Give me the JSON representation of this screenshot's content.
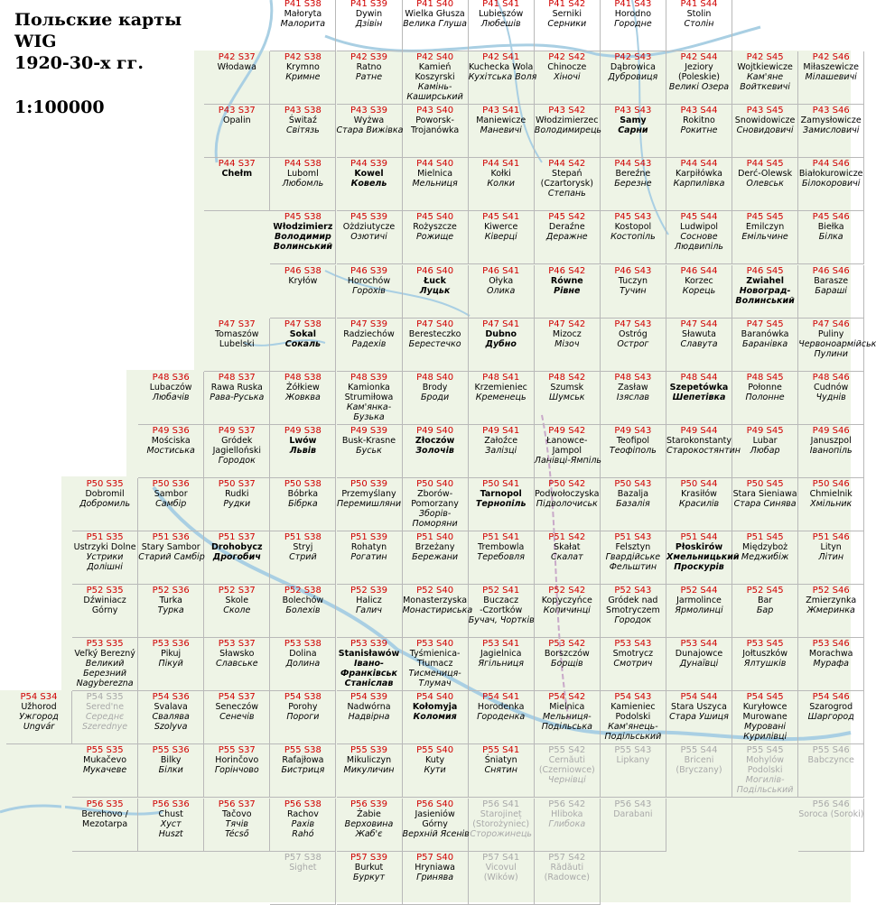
{
  "title_lines": [
    "Польские карты",
    "WIG",
    "1920-30-х гг."
  ],
  "scale": "1:100000",
  "colors": {
    "code": "#d00000",
    "water": "#b4d8ea",
    "land": "#e9f2e0",
    "faded": "#a9a9a9",
    "grid": "#b9b9b9"
  },
  "rows": {
    "41": [
      "P41 S38|Małoryta|Малорита|",
      "P41 S39|Dywin|Дзівін|",
      "P41 S40|Wielka Głusza|Велика Глуша|",
      "P41 S41|Lubieszów|Любешів|",
      "P41 S42|Serniki|Серники|",
      "P41 S43|Horodno|Городне|",
      "P41 S44|Stolin|Столін|"
    ],
    "42": [
      "P42 S37|Włodawa||",
      "P42 S38|Krymno|Кримне|",
      "P42 S39|Ratno|Ратне|",
      "P42 S40|Kamień\nKoszyrski|Камінь-\nКаширський|",
      "P42 S41|Kuchecka Wola|Кухітська Воля|",
      "P42 S42|Chinocze|Хіночі|",
      "P42 S43|Dąbrowica|Дубровиця|",
      "P42 S44|Jeziory\n(Poleskie)|Великі Озера|",
      "P42 S45|Wojtkiewicze|Кам'яне\nВойткевичі|",
      "P42 S46|Miłaszewicze|Мілашевичі|"
    ],
    "43": [
      "P43 S37|Opalin||",
      "P43 S38|Świtaź|Світязь|",
      "P43 S39|Wyżwa|Стара Вижівка|",
      "P43 S40|Poworsk-\nTrojanówka||",
      "P43 S41|Maniewicze|Маневичі|",
      "P43 S42|Włodzimierzec|Володимирець|",
      "P43 S43|Samy|Сарни|b",
      "P43 S44|Rokitno|Рокитне|",
      "P43 S45|Snowidowicze|Сновидовичі|",
      "P43 S46|Zamysłowicze|Замисловичі|"
    ],
    "44": [
      "P44 S37|Chełm||b",
      "P44 S38|Luboml|Любомль|",
      "P44 S39|Kowel|Ковель|b",
      "P44 S40|Mielnica|Мельниця|",
      "P44 S41|Kołki|Колки|",
      "P44 S42|Stepań\n(Czartorysk)|Степань|",
      "P44 S43|Bereźne|Березне|",
      "P44 S44|Karpiłówka|Карпилівка|",
      "P44 S45|Derć-Olewsk|Олевськ|",
      "P44 S46|Białokurowicze|Білокоровичі|"
    ],
    "45": [
      "P45 S38|Włodzimierz|Володимир\nВолинський|b",
      "P45 S39|Ożdziutycze|Озютичі|",
      "P45 S40|Rożyszcze|Рожище|",
      "P45 S41|Kiwerce|Ківерці|",
      "P45 S42|Deraźne|Деражне|",
      "P45 S43|Kostopol|Костопіль|",
      "P45 S44|Ludwipol|Соснове\nЛюдвипіль|",
      "P45 S45|Emilczyn|Емільчине|",
      "P45 S46|Biełka|Білка|"
    ],
    "46": [
      "P46 S38|Kryłów||",
      "P46 S39|Horochów|Горохів|",
      "P46 S40|Łuck|Луцьк|b",
      "P46 S41|Ołyka|Олика|",
      "P46 S42|Równe|Рівне|b",
      "P46 S43|Tuczyn|Тучин|",
      "P46 S44|Korzec|Корець|",
      "P46 S45|Zwiahel|Новоград-\nВолинський|b",
      "P46 S46|Barasze|Бараші|"
    ],
    "47": [
      "P47 S37|Tomaszów\nLubelski||",
      "P47 S38|Sokal|Сокаль|b",
      "P47 S39|Radziechów|Радехів|",
      "P47 S40|Beresteczko|Берестечко|",
      "P47 S41|Dubno|Дубно|b",
      "P47 S42|Mizocz|Мізоч|",
      "P47 S43|Ostróg|Острог|",
      "P47 S44|Sławuta|Славута|",
      "P47 S45|Baranówka|Баранівка|",
      "P47 S46|Puliny|Червоноармійськ\nПулини|"
    ],
    "48": [
      "P48 S36|Lubaczów|Любачів|",
      "P48 S37|Rawa Ruska|Рава-Руська|",
      "P48 S38|Żółkiew|Жовква|",
      "P48 S39|Kamionka\nStrumiłowa|Кам'янка-\nБузька|",
      "P48 S40|Brody|Броди|",
      "P48 S41|Krzemieniec|Кременець|",
      "P48 S42|Szumsk|Шумськ|",
      "P48 S43|Zasław|Ізяслав|",
      "P48 S44|Szepetówka|Шепетівка|b",
      "P48 S45|Połonne|Полонне|",
      "P48 S46|Cudnów|Чуднів|"
    ],
    "49": [
      "P49 S36|Mościska|Мостиська|",
      "P49 S37|Gródek\nJagielloński|Городок|",
      "P49 S38|Lwów|Львів|b",
      "P49 S39|Busk-Krasne|Буськ|",
      "P49 S40|Złoczów|Золочів|b",
      "P49 S41|Załoźce|Залізці|",
      "P49 S42|Łanowce-\nJampol|Ланівці-Ямпіль|",
      "P49 S43|Teofipol|Теофіполь|",
      "P49 S44|Starokonstanty|Старокостянтин|",
      "P49 S45|Lubar|Любар|",
      "P49 S46|Januszpol|Іванопіль|"
    ],
    "50": [
      "P50 S35|Dobromil|Добромиль|",
      "P50 S36|Sambor|Самбір|",
      "P50 S37|Rudki|Рудки|",
      "P50 S38|Bóbrka|Бібрка|",
      "P50 S39|Przemyślany|Перемишляни|",
      "P50 S40|Zborów-\nPomorzany|Зборів-\nПоморяни|",
      "P50 S41|Tarnopol|Тернопіль|b",
      "P50 S42|Podwołoczyska|Підволочиськ|",
      "P50 S43|Bazalja|Базалія|",
      "P50 S44|Krasiłów|Красилів|",
      "P50 S45|Stara Sieniawa|Стара Синява|",
      "P50 S46|Chmielnik|Хмільник|"
    ],
    "51": [
      "P51 S35|Ustrzyki Dolne|Устрики\nДолішні|",
      "P51 S36|Stary Sambor|Старий Самбір|",
      "P51 S37|Drohobycz|Дрогобич|b",
      "P51 S38|Stryj|Стрий|",
      "P51 S39|Rohatyn|Рогатин|",
      "P51 S40|Brzeżany|Бережани|",
      "P51 S41|Trembowla|Теребовля|",
      "P51 S42|Skałat|Скалат|",
      "P51 S43|Felsztyn|Гвардійське\nФельштин|",
      "P51 S44|Płoskirów|Хмельницький\nПроскурів|b",
      "P51 S45|Międzyboż|Меджибіж|",
      "P51 S46|Lityn|Літин|"
    ],
    "52": [
      "P52 S35|Dźwiniacz\nGórny||",
      "P52 S36|Turka|Турка|",
      "P52 S37|Skole|Сколе|",
      "P52 S38|Bolechów|Болехів|",
      "P52 S39|Halicz|Галич|",
      "P52 S40|Monasterzyska|Монастириська|",
      "P52 S41|Buczacz\n-Czortków|Бучач, Чортків|",
      "P52 S42|Kopyczyńce|Копичинці|",
      "P52 S43|Gródek nad\nSmotryczem|Городок|",
      "P52 S44|Jarmolince|Ярмолинці|",
      "P52 S45|Bar|Бар|",
      "P52 S46|Zmierzynka|Жмеринка|"
    ],
    "53": [
      "P53 S35|Veľký Berezný|Великий\nБерезний\nNagyberezna|",
      "P53 S36|Pikuj|Пікуй|",
      "P53 S37|Sławsko|Славське|",
      "P53 S38|Dolina|Долина|",
      "P53 S39|Stanisławów|Івано-\nФранківськ\nСтаніслав|b",
      "P53 S40|Tyśmienica-\nTłumacz|Тисмениця-\nТлумач|",
      "P53 S41|Jagielnica|Ягільниця|",
      "P53 S42|Borszczów|Борщів|",
      "P53 S43|Smotrycz|Смотрич|",
      "P53 S44|Dunajowce|Дунаївці|",
      "P53 S45|Jołtuszków|Ялтушків|",
      "P53 S46|Morachwa|Мурафа|"
    ],
    "54": [
      "P54 S34|Užhorod|Ужгород\nUngvár|",
      "P54 S35|Sered'ne|Середнє\nSzerednye|f",
      "P54 S36|Svalava|Свалява\nSzolyva|",
      "P54 S37|Seneczów|Сенечів|",
      "P54 S38|Porohy|Пороги|",
      "P54 S39|Nadwórna|Надвірна|",
      "P54 S40|Kołomyja|Коломия|b",
      "P54 S41|Horodenka|Городенка|",
      "P54 S42|Mielnica|Мельниця-\nПодільська|",
      "P54 S43|Kamieniec\nPodolski|Кам'янець-\nПодільський|",
      "P54 S44|Stara Uszyca|Стара Ушиця|",
      "P54 S45|Kuryłowce\nMurowane|Мурованi\nКурилівці|",
      "P54 S46|Szarogrod|Шаргород|"
    ],
    "55": [
      "P55 S35|Mukačevo|Мукачеве|",
      "P55 S36|Bilky|Білки|",
      "P55 S37|Horinčovo|Горінчово|",
      "P55 S38|Rafajłowa|Бистриця|",
      "P55 S39|Mikuliczyn|Микуличин|",
      "P55 S40|Kuty|Кути|",
      "P55 S41|Śniatyn|Снятин|",
      "P55 S42|Cernăuti\n(Czerniowce)|Чернівці|f",
      "P55 S43|Lipkany||f",
      "P55 S44|Briceni\n(Bryczany)||f",
      "P55 S45|Mohylów\nPodolski|Могилів-\nПодільський|f",
      "P55 S46|Babczynce||f"
    ],
    "56": [
      "P56 S35|Berehovo /\nMezotarpa||",
      "P56 S36|Chust|Хуст\nHuszt|",
      "P56 S37|Tačovo|Тячів\nTécső|",
      "P56 S38|Rachov|Рахів\nRahó|",
      "P56 S39|Żabie|Верховина\nЖаб'є|",
      "P56 S40|Jasieniów\nGórny|Верхній Ясенів|",
      "P56 S41|Starojineț\n(Storożyniec)|Сторожинець|f",
      "P56 S42|Hliboka|Глибока|f",
      "P56 S43|Darabani||f",
      "P56 S46|Soroca (Soroki)||f"
    ],
    "57": [
      "P57 S38|Sighet||f",
      "P57 S39|Burkut|Буркут|",
      "P57 S40|Hryniawa|Гринява|",
      "P57 S41|Vicovul\n(Wików)||f",
      "P57 S42|Rădăuti\n(Radowce)||f"
    ]
  }
}
